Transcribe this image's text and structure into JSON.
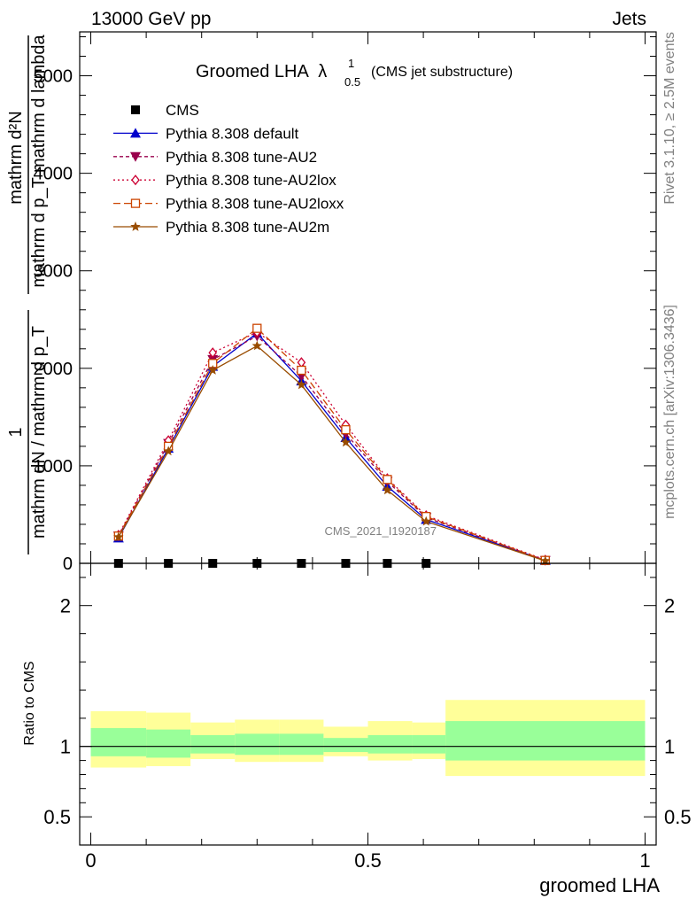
{
  "header": {
    "left": "13000 GeV pp",
    "right": "Jets"
  },
  "side_labels": {
    "rivet": "Rivet 3.1.10, ≥ 2.5M events",
    "mcplots": "mcplots.cern.ch [arXiv:1306.3436]"
  },
  "watermark": "CMS_2021_I1920187",
  "chart_data": [
    {
      "type": "line",
      "title": "Groomed LHA",
      "title_symbol": "λ",
      "title_sup": "1",
      "title_sub": "0.5",
      "subtitle": "(CMS jet substructure)",
      "ylabel_num": "mathrm d²N",
      "ylabel_den": "mathrm d p_T mathrm d lambda",
      "ylabel_prefix_num": "1",
      "ylabel_prefix_den": "mathrm dN / mathrm d p_T",
      "xlim": [
        -0.02,
        1.02
      ],
      "ylim": [
        0,
        5450
      ],
      "yticks": [
        0,
        1000,
        2000,
        3000,
        4000,
        5000
      ],
      "ytick_labels": [
        "0",
        "1000",
        "2000",
        "3000",
        "4000",
        "5000"
      ],
      "bin_edges": [
        0,
        0.1,
        0.18,
        0.26,
        0.34,
        0.42,
        0.5,
        0.58,
        0.64,
        1.0
      ],
      "x": [
        0.05,
        0.14,
        0.22,
        0.3,
        0.38,
        0.46,
        0.535,
        0.605,
        0.82
      ],
      "series": [
        {
          "name": "CMS",
          "style": "cms",
          "color": "#000000",
          "values": [
            0,
            0,
            0,
            0,
            0,
            0,
            0,
            0,
            null
          ]
        },
        {
          "name": "Pythia 8.308 default",
          "style": "default",
          "color": "#0000cc",
          "values": [
            260,
            1180,
            2020,
            2360,
            1870,
            1290,
            790,
            450,
            30
          ]
        },
        {
          "name": "Pythia 8.308 tune-AU2",
          "style": "au2",
          "color": "#99004c",
          "values": [
            280,
            1230,
            2090,
            2330,
            1920,
            1330,
            840,
            470,
            30
          ]
        },
        {
          "name": "Pythia 8.308 tune-AU2lox",
          "style": "au2lox",
          "color": "#cc0033",
          "values": [
            290,
            1260,
            2160,
            2370,
            2060,
            1420,
            870,
            490,
            35
          ]
        },
        {
          "name": "Pythia 8.308 tune-AU2loxx",
          "style": "au2loxx",
          "color": "#cc4400",
          "values": [
            280,
            1200,
            2050,
            2410,
            1980,
            1370,
            860,
            480,
            30
          ]
        },
        {
          "name": "Pythia 8.308 tune-AU2m",
          "style": "au2m",
          "color": "#994c00",
          "values": [
            270,
            1150,
            1980,
            2230,
            1830,
            1240,
            750,
            430,
            25
          ]
        }
      ]
    },
    {
      "type": "area",
      "ylabel": "Ratio to CMS",
      "xlabel": "groomed LHA",
      "xlim": [
        -0.02,
        1.02
      ],
      "ylim": [
        0.3,
        2.3
      ],
      "yticks": [
        0.5,
        1,
        2
      ],
      "ytick_labels": [
        "0.5",
        "1",
        "2"
      ],
      "xticks": [
        0,
        0.5,
        1
      ],
      "xtick_labels": [
        "0",
        "0.5",
        "1"
      ],
      "bands": [
        {
          "x0": 0.0,
          "x1": 0.1,
          "yellow": [
            0.85,
            1.25
          ],
          "green": [
            0.93,
            1.13
          ]
        },
        {
          "x0": 0.1,
          "x1": 0.18,
          "yellow": [
            0.86,
            1.24
          ],
          "green": [
            0.92,
            1.12
          ]
        },
        {
          "x0": 0.18,
          "x1": 0.26,
          "yellow": [
            0.91,
            1.17
          ],
          "green": [
            0.95,
            1.08
          ]
        },
        {
          "x0": 0.26,
          "x1": 0.34,
          "yellow": [
            0.89,
            1.19
          ],
          "green": [
            0.94,
            1.09
          ]
        },
        {
          "x0": 0.34,
          "x1": 0.42,
          "yellow": [
            0.89,
            1.19
          ],
          "green": [
            0.94,
            1.09
          ]
        },
        {
          "x0": 0.42,
          "x1": 0.5,
          "yellow": [
            0.93,
            1.14
          ],
          "green": [
            0.96,
            1.06
          ]
        },
        {
          "x0": 0.5,
          "x1": 0.58,
          "yellow": [
            0.9,
            1.18
          ],
          "green": [
            0.95,
            1.08
          ]
        },
        {
          "x0": 0.58,
          "x1": 0.64,
          "yellow": [
            0.91,
            1.17
          ],
          "green": [
            0.95,
            1.08
          ]
        },
        {
          "x0": 0.64,
          "x1": 1.0,
          "yellow": [
            0.79,
            1.33
          ],
          "green": [
            0.9,
            1.18
          ]
        }
      ],
      "reference_line": 1,
      "colors": {
        "yellow": "#ffff99",
        "green": "#99ff99"
      }
    }
  ]
}
